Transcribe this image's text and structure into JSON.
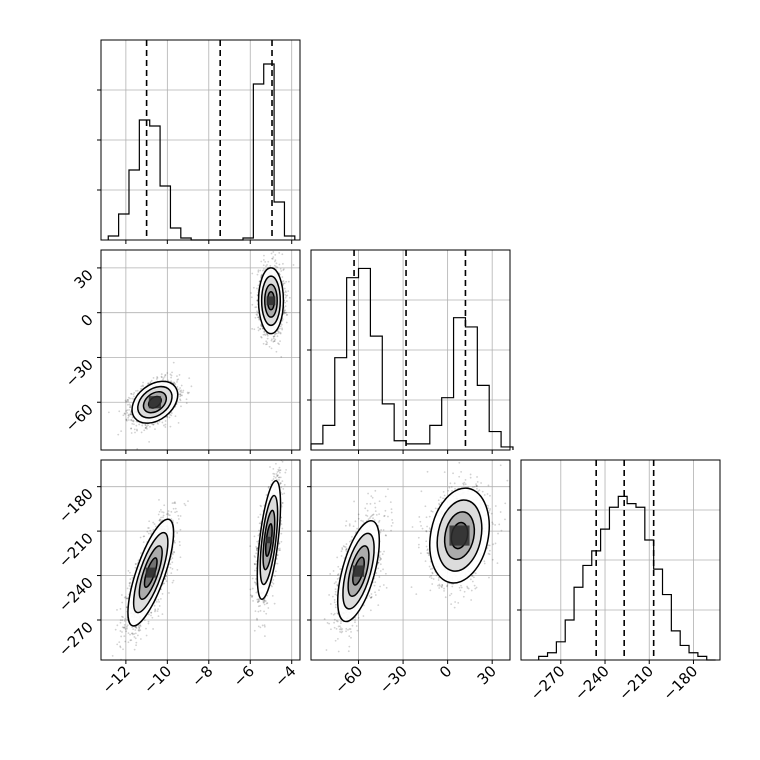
{
  "chart_data": {
    "type": "corner",
    "parameters": [
      {
        "range": [
          -13.2,
          -3.6
        ],
        "ticks": [
          -12,
          -10,
          -8,
          -6,
          -4
        ],
        "tick_labels": [
          "−12",
          "−10",
          "−8",
          "−6",
          "−4"
        ],
        "quantiles": [
          -11.0,
          -7.45,
          -4.95
        ],
        "hist_centers": [
          -12.6,
          -12.1,
          -11.6,
          -11.1,
          -10.6,
          -10.1,
          -9.6,
          -9.1,
          -8.6,
          -8.1,
          -7.6,
          -7.1,
          -6.6,
          -6.1,
          -5.6,
          -5.1,
          -4.6,
          -4.1
        ],
        "hist_counts": [
          2,
          13,
          35,
          60,
          57,
          27,
          6,
          1,
          0,
          0,
          0,
          0,
          0,
          1,
          78,
          88,
          19,
          2
        ],
        "hist_max": 100
      },
      {
        "range": [
          -92,
          42
        ],
        "ticks": [
          -60,
          -30,
          0,
          30
        ],
        "tick_labels": [
          "−60",
          "−30",
          "0",
          "30"
        ],
        "quantiles": [
          -63,
          -28,
          12
        ],
        "hist_centers": [
          -88,
          -80,
          -72,
          -64,
          -56,
          -48,
          -40,
          -32,
          -24,
          -16,
          -8,
          0,
          8,
          16,
          24,
          32,
          40
        ],
        "hist_counts": [
          2,
          8,
          30,
          56,
          59,
          37,
          15,
          3,
          2,
          2,
          8,
          17,
          43,
          40,
          21,
          6,
          1
        ],
        "hist_max": 65
      },
      {
        "range": [
          -297,
          -162
        ],
        "ticks": [
          -270,
          -240,
          -210,
          -180
        ],
        "tick_labels": [
          "−270",
          "−240",
          "−210",
          "−180"
        ],
        "quantiles": [
          -246,
          -227,
          -207
        ],
        "hist_centers": [
          -282,
          -276,
          -270,
          -264,
          -258,
          -252,
          -246,
          -240,
          -234,
          -228,
          -222,
          -216,
          -210,
          -204,
          -198,
          -192,
          -186,
          -180,
          -174,
          -168
        ],
        "hist_counts": [
          1,
          2,
          5,
          11,
          20,
          26,
          30,
          36,
          42,
          45,
          43,
          42,
          33,
          25,
          18,
          8,
          4,
          2,
          1,
          0
        ],
        "hist_max": 55
      }
    ],
    "pairs": [
      {
        "x": 0,
        "y": 1,
        "clusters": [
          {
            "center": [
              -10.6,
              -60
            ],
            "spread": [
              0.55,
              7
            ],
            "rho": 0.35,
            "n": 1600
          },
          {
            "center": [
              -5.0,
              8
            ],
            "spread": [
              0.3,
              11
            ],
            "rho": 0.0,
            "n": 1400
          }
        ]
      },
      {
        "x": 0,
        "y": 2,
        "clusters": [
          {
            "center": [
              -10.8,
              -238
            ],
            "spread": [
              0.55,
              18
            ],
            "rho": 0.75,
            "n": 1600
          },
          {
            "center": [
              -5.1,
              -216
            ],
            "spread": [
              0.28,
              20
            ],
            "rho": 0.6,
            "n": 1400
          }
        ]
      },
      {
        "x": 1,
        "y": 2,
        "clusters": [
          {
            "center": [
              -60,
              -237
            ],
            "spread": [
              7,
              17
            ],
            "rho": 0.6,
            "n": 1600
          },
          {
            "center": [
              8,
              -213
            ],
            "spread": [
              10,
              16
            ],
            "rho": 0.2,
            "n": 1400
          }
        ]
      }
    ],
    "grid": true,
    "contour_levels": 4
  }
}
